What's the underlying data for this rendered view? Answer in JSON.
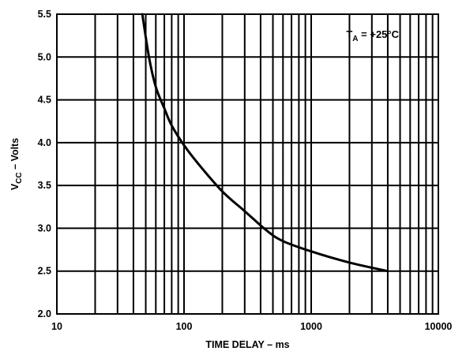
{
  "chart_data": {
    "type": "line",
    "x_scale": "log",
    "xlabel": "TIME DELAY – ms",
    "ylabel": {
      "main": "V",
      "sub": "CC",
      "rest": " – Volts"
    },
    "xlim": [
      10,
      10000
    ],
    "ylim": [
      2.0,
      5.5
    ],
    "x_ticks": [
      {
        "value": 10,
        "label": "10"
      },
      {
        "value": 100,
        "label": "100"
      },
      {
        "value": 1000,
        "label": "1000"
      },
      {
        "value": 10000,
        "label": "10000"
      }
    ],
    "y_ticks": [
      {
        "value": 2.0,
        "label": "2.0"
      },
      {
        "value": 2.5,
        "label": "2.5"
      },
      {
        "value": 3.0,
        "label": "3.0"
      },
      {
        "value": 3.5,
        "label": "3.5"
      },
      {
        "value": 4.0,
        "label": "4.0"
      },
      {
        "value": 4.5,
        "label": "4.5"
      },
      {
        "value": 5.0,
        "label": "5.0"
      },
      {
        "value": 5.5,
        "label": "5.5"
      }
    ],
    "grid": true,
    "annotation": {
      "main": "T",
      "sub": "A",
      "rest": " = +25°C",
      "placement": "top-right"
    },
    "series": [
      {
        "x": [
          47,
          53,
          60,
          70,
          80,
          100,
          130,
          200,
          300,
          450,
          600,
          1000,
          2000,
          4000
        ],
        "y": [
          5.5,
          5.0,
          4.65,
          4.4,
          4.2,
          3.97,
          3.75,
          3.43,
          3.2,
          2.97,
          2.85,
          2.73,
          2.6,
          2.5
        ]
      }
    ]
  }
}
